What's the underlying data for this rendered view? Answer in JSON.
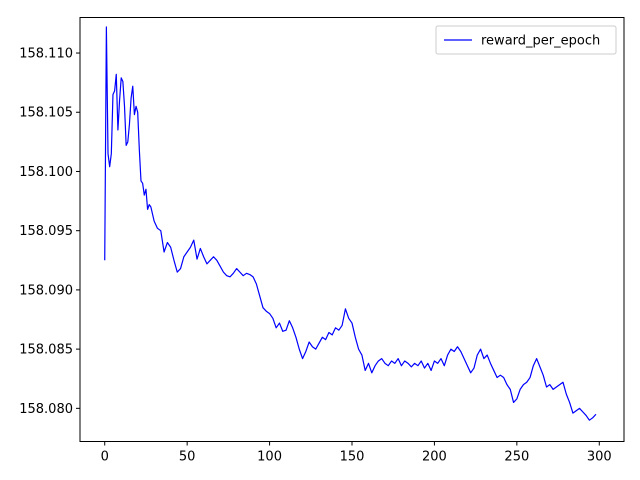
{
  "chart_data": {
    "type": "line",
    "title": "",
    "xlabel": "",
    "ylabel": "",
    "xlim": [
      -15,
      315
    ],
    "ylim": [
      158.0772,
      158.113
    ],
    "xticks": [
      0,
      50,
      100,
      150,
      200,
      250,
      300
    ],
    "yticks": [
      158.08,
      158.085,
      158.09,
      158.095,
      158.1,
      158.105,
      158.11
    ],
    "ytick_labels": [
      "158.080",
      "158.085",
      "158.090",
      "158.095",
      "158.100",
      "158.105",
      "158.110"
    ],
    "grid": false,
    "legend": {
      "placement": "top-right"
    },
    "series": [
      {
        "name": "reward_per_epoch",
        "color": "#0000ff",
        "x": [
          0,
          1,
          2,
          3,
          4,
          5,
          6,
          7,
          8,
          9,
          10,
          11,
          12,
          13,
          14,
          15,
          16,
          17,
          18,
          19,
          20,
          21,
          22,
          23,
          24,
          25,
          26,
          27,
          28,
          30,
          32,
          34,
          36,
          38,
          40,
          42,
          44,
          46,
          48,
          50,
          52,
          54,
          56,
          58,
          60,
          62,
          64,
          66,
          68,
          70,
          72,
          74,
          76,
          78,
          80,
          82,
          84,
          86,
          88,
          90,
          92,
          94,
          96,
          98,
          100,
          102,
          104,
          106,
          108,
          110,
          112,
          114,
          116,
          118,
          120,
          122,
          124,
          126,
          128,
          130,
          132,
          134,
          136,
          138,
          140,
          142,
          144,
          146,
          148,
          150,
          152,
          154,
          156,
          158,
          160,
          162,
          164,
          166,
          168,
          170,
          172,
          174,
          176,
          178,
          180,
          182,
          184,
          186,
          188,
          190,
          192,
          194,
          196,
          198,
          200,
          202,
          204,
          206,
          208,
          210,
          212,
          214,
          216,
          218,
          220,
          222,
          224,
          226,
          228,
          230,
          232,
          234,
          236,
          238,
          240,
          242,
          244,
          246,
          248,
          250,
          252,
          254,
          256,
          258,
          260,
          262,
          264,
          266,
          268,
          270,
          272,
          274,
          276,
          278,
          280,
          282,
          284,
          286,
          288,
          290,
          292,
          294,
          296,
          298
        ],
        "y": [
          158.0925,
          158.1122,
          158.1015,
          158.1004,
          158.1015,
          158.1065,
          158.1068,
          158.1082,
          158.1035,
          158.106,
          158.1079,
          158.1076,
          158.1055,
          158.1022,
          158.1025,
          158.104,
          158.1062,
          158.1072,
          158.1048,
          158.1055,
          158.105,
          158.1018,
          158.0992,
          158.099,
          158.098,
          158.0985,
          158.0968,
          158.0972,
          158.097,
          158.0958,
          158.0952,
          158.095,
          158.0932,
          158.094,
          158.0936,
          158.0925,
          158.0915,
          158.0918,
          158.0928,
          158.0932,
          158.0936,
          158.0942,
          158.0926,
          158.0935,
          158.0928,
          158.0922,
          158.0925,
          158.0928,
          158.0925,
          158.092,
          158.0915,
          158.0912,
          158.0911,
          158.0914,
          158.0918,
          158.0915,
          158.0912,
          158.0914,
          158.0913,
          158.0911,
          158.0905,
          158.0895,
          158.0885,
          158.0882,
          158.088,
          158.0876,
          158.0868,
          158.0872,
          158.0865,
          158.0866,
          158.0874,
          158.0868,
          158.086,
          158.085,
          158.0842,
          158.0848,
          158.0856,
          158.0852,
          158.085,
          158.0855,
          158.086,
          158.0858,
          158.0864,
          158.0862,
          158.0868,
          158.0866,
          158.087,
          158.0884,
          158.0876,
          158.0872,
          158.086,
          158.085,
          158.0845,
          158.0832,
          158.0838,
          158.083,
          158.0836,
          158.084,
          158.0842,
          158.0838,
          158.0836,
          158.084,
          158.0838,
          158.0842,
          158.0836,
          158.084,
          158.0838,
          158.0835,
          158.0838,
          158.0836,
          158.084,
          158.0834,
          158.0838,
          158.0832,
          158.084,
          158.0838,
          158.0842,
          158.0836,
          158.0845,
          158.085,
          158.0848,
          158.0852,
          158.0848,
          158.0842,
          158.0836,
          158.083,
          158.0834,
          158.0845,
          158.085,
          158.0842,
          158.0845,
          158.0838,
          158.0832,
          158.0826,
          158.0828,
          158.0826,
          158.082,
          158.0816,
          158.0805,
          158.0808,
          158.0816,
          158.082,
          158.0822,
          158.0826,
          158.0836,
          158.0842,
          158.0835,
          158.0828,
          158.0818,
          158.082,
          158.0816,
          158.0818,
          158.082,
          158.0822,
          158.0812,
          158.0805,
          158.0796,
          158.0798,
          158.08,
          158.0797,
          158.0794,
          158.079,
          158.0792,
          158.0795
        ]
      }
    ]
  }
}
